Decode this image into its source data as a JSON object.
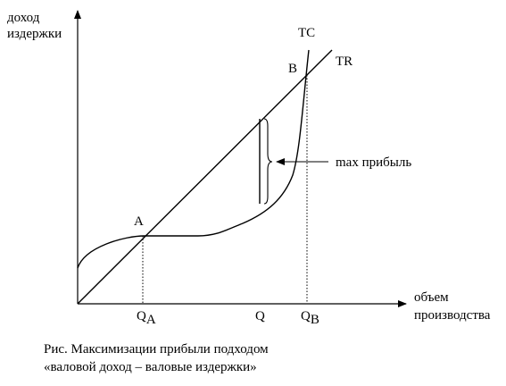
{
  "axes": {
    "y_label_line1": "доход",
    "y_label_line2": "издержки",
    "x_label_line1": "объем",
    "x_label_line2": "производства"
  },
  "curves": {
    "tc_label": "TC",
    "tr_label": "TR"
  },
  "points": {
    "a_label": "A",
    "b_label": "B"
  },
  "quantities": {
    "qa_main": "Q",
    "qa_sub": "A",
    "q_label": "Q",
    "qb_main": "Q",
    "qb_sub": "B"
  },
  "annotation": {
    "max_profit_label": "max прибыль"
  },
  "caption": {
    "line1": "Рис. Максимизации прибыли подходом",
    "line2": "«валовой доход – валовые издержки»"
  }
}
